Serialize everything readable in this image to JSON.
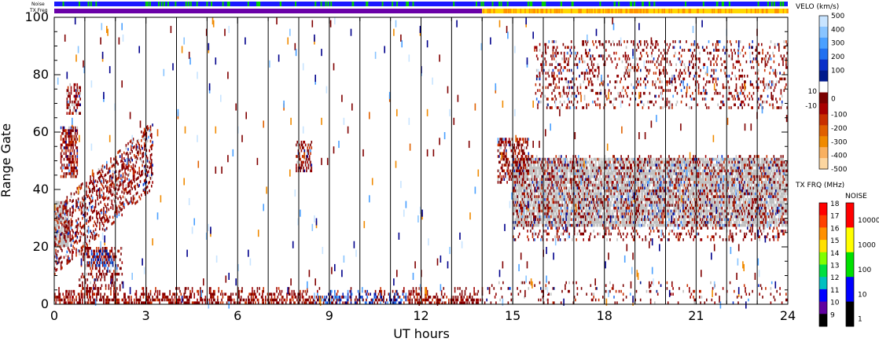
{
  "chart_data": {
    "type": "heatmap",
    "xlabel": "UT hours",
    "ylabel": "Range Gate",
    "xlim": [
      0,
      24
    ],
    "ylim": [
      0,
      100
    ],
    "x_ticks": [
      "0",
      "3",
      "6",
      "9",
      "12",
      "15",
      "18",
      "21",
      "24"
    ],
    "y_ticks": [
      "0",
      "20",
      "40",
      "60",
      "80",
      "100"
    ],
    "hour_lines": [
      1,
      2,
      3,
      4,
      5,
      6,
      7,
      8,
      9,
      10,
      11,
      12,
      13,
      14,
      15,
      16,
      17,
      18,
      19,
      20,
      21,
      22,
      23
    ],
    "top_bars": {
      "noise_label": "Noise",
      "txfreq_label": "TX Freq",
      "txfreq_change_hour": 14.0
    },
    "regions": [
      {
        "kind": "ground",
        "x": [
          0.0,
          0.45
        ],
        "y": [
          20,
          36
        ],
        "density": 0.8
      },
      {
        "kind": "echo",
        "x": [
          0.2,
          0.75
        ],
        "y": [
          44,
          62
        ],
        "density": 0.55
      },
      {
        "kind": "echo",
        "x": [
          0.4,
          0.85
        ],
        "y": [
          66,
          77
        ],
        "density": 0.5
      },
      {
        "kind": "echo",
        "x": [
          0.0,
          3.2
        ],
        "y": [
          14,
          62
        ],
        "density": 0.35,
        "slant": true
      },
      {
        "kind": "echo",
        "x": [
          0.8,
          2.2
        ],
        "y": [
          5,
          20
        ],
        "density": 0.3
      },
      {
        "kind": "echo",
        "x": [
          1.2,
          1.9
        ],
        "y": [
          13,
          19
        ],
        "density": 0.6,
        "blue": true
      },
      {
        "kind": "echo",
        "x": [
          7.9,
          8.4
        ],
        "y": [
          46,
          57
        ],
        "density": 0.5
      },
      {
        "kind": "echo",
        "x": [
          0.0,
          14.0
        ],
        "y": [
          0,
          5
        ],
        "density": 0.55,
        "near_range": true
      },
      {
        "kind": "ground",
        "x": [
          15.0,
          24.0
        ],
        "y": [
          27,
          51
        ],
        "density": 0.75
      },
      {
        "kind": "echo",
        "x": [
          14.5,
          15.5
        ],
        "y": [
          42,
          58
        ],
        "density": 0.45
      },
      {
        "kind": "echo",
        "x": [
          15.0,
          24.0
        ],
        "y": [
          22,
          52
        ],
        "density": 0.18
      },
      {
        "kind": "echo",
        "x": [
          15.7,
          24.0
        ],
        "y": [
          68,
          92
        ],
        "density": 0.18
      },
      {
        "kind": "echo",
        "x": [
          14.0,
          24.0
        ],
        "y": [
          0,
          8
        ],
        "density": 0.08
      },
      {
        "kind": "scatter",
        "x": [
          0.0,
          24.0
        ],
        "y": [
          0,
          100
        ],
        "density": 0.006
      }
    ],
    "velocity_scale": {
      "title": "VELO (km/s)",
      "labels": [
        "500",
        "400",
        "300",
        "200",
        "100",
        "10",
        "0",
        "-10",
        "-100",
        "-200",
        "-300",
        "-400",
        "-500"
      ],
      "colors": [
        "#c8e4ff",
        "#88c4ff",
        "#4aa0ff",
        "#2070f0",
        "#0a30c8",
        "#001a8c",
        "#ffffff",
        "#7a0000",
        "#a80000",
        "#c83000",
        "#e06000",
        "#f08a00",
        "#f8b060",
        "#fcd6a0"
      ]
    },
    "txfreq_scale": {
      "title": "TX FRQ (MHz)",
      "labels": [
        "18",
        "17",
        "16",
        "15",
        "14",
        "13",
        "12",
        "11",
        "10",
        "9"
      ],
      "colors": [
        "#ff0000",
        "#ff4000",
        "#ff9000",
        "#ffe000",
        "#80ff00",
        "#00e040",
        "#00c0c0",
        "#0000ff",
        "#6000a0",
        "#000000"
      ]
    },
    "noise_scale": {
      "title": "NOISE",
      "labels": [
        "10000",
        "1000",
        "100",
        "10",
        "1"
      ],
      "colors": [
        "#ff0000",
        "#ffff00",
        "#00e000",
        "#0000ff",
        "#000000"
      ]
    },
    "palette": {
      "ground": "#c0c0c0",
      "neg": [
        "#800000",
        "#8b0000",
        "#7a0000",
        "#a00000",
        "#c83000"
      ],
      "pos": [
        "#00008b",
        "#001a8c",
        "#0a30c8",
        "#2070f0",
        "#4aa0ff"
      ],
      "sparse": [
        "#c8e4ff",
        "#88c4ff",
        "#f08a00",
        "#e06000",
        "#800000",
        "#00008b",
        "#4aa0ff"
      ]
    }
  }
}
